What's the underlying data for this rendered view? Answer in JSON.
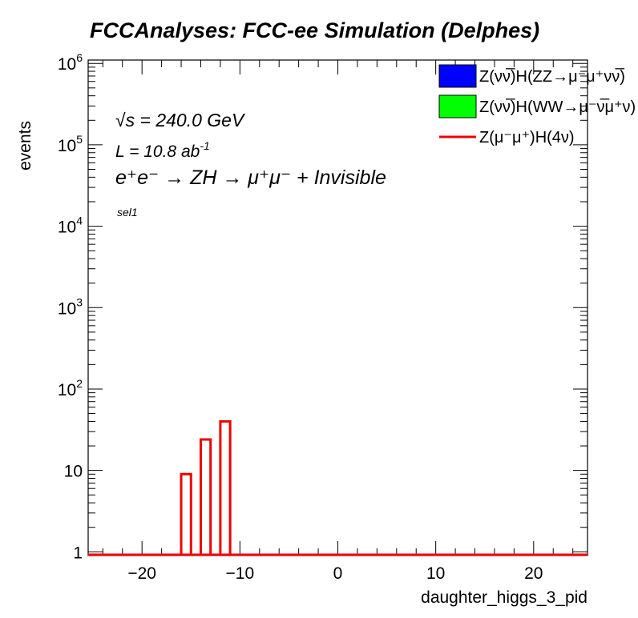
{
  "chart_data": {
    "type": "histogram",
    "title": "FCCAnalyses: FCC-ee Simulation (Delphes)",
    "xlabel": "daughter_higgs_3_pid",
    "ylabel": "events",
    "xlim": [
      -25.5,
      25.5
    ],
    "ylim": [
      0.9,
      1100000
    ],
    "yscale": "log",
    "xticks": [
      -20,
      -10,
      0,
      10,
      20
    ],
    "xtick_labels": [
      "−20",
      "−10",
      "0",
      "10",
      "20"
    ],
    "ytick_labels": [
      {
        "base": "1",
        "exp": ""
      },
      {
        "base": "10",
        "exp": ""
      },
      {
        "base": "10",
        "exp": "2"
      },
      {
        "base": "10",
        "exp": "3"
      },
      {
        "base": "10",
        "exp": "4"
      },
      {
        "base": "10",
        "exp": "5"
      },
      {
        "base": "10",
        "exp": "6"
      }
    ],
    "series": [
      {
        "name": "Z(νν̅)H(ZZ→μ⁻μ⁺νν̅)",
        "style": "filled",
        "color": "#0000ff",
        "bins": []
      },
      {
        "name": "Z(νν̅)H(WW→μ⁻ν̅μ⁺ν)",
        "style": "filled",
        "color": "#00ff00",
        "bins": []
      },
      {
        "name": "Z(μ⁻μ⁺)H(4ν)",
        "style": "line",
        "color": "#ee0000",
        "bins": [
          {
            "x0": -16,
            "x1": -15,
            "y": 9
          },
          {
            "x0": -14,
            "x1": -13,
            "y": 24
          },
          {
            "x0": -12,
            "x1": -11,
            "y": 40
          }
        ]
      }
    ],
    "legend_position": "top-right"
  },
  "annotations": {
    "sqrt_s": "√s = 240.0 GeV",
    "lumi_main": "L = 10.8 ab",
    "lumi_exp": "-1",
    "process": "e⁺e⁻ → ZH → μ⁺μ⁻ + Invisible",
    "selection": "sel1"
  }
}
